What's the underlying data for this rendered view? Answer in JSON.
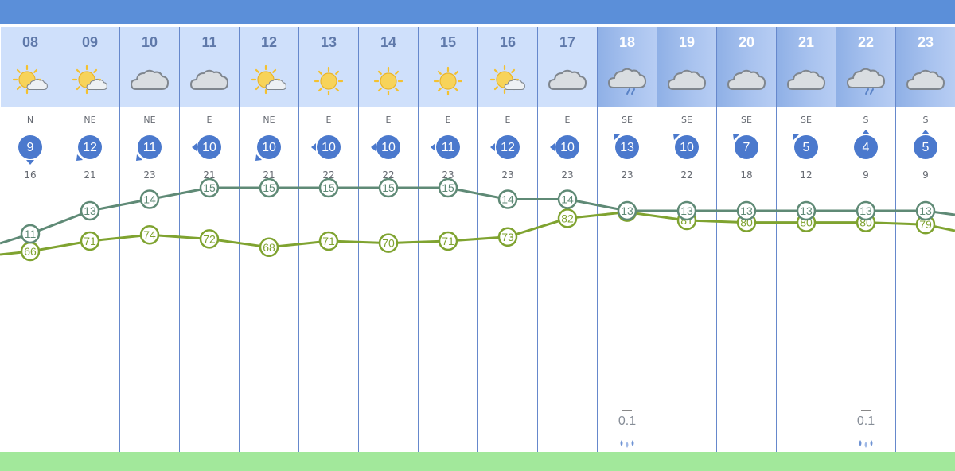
{
  "colors": {
    "top_bar": "#5b8fd9",
    "temp_line": "#5f8a76",
    "humidity_line": "#7fa330",
    "badge": "#4b79cd",
    "green_strip": "#a2e89b"
  },
  "hours": [
    {
      "hour": "08",
      "icon": "sun-cloud-icon",
      "dir": "N",
      "speed": "9",
      "gust": "16",
      "arrow": "down",
      "temp": "11",
      "hum": "66"
    },
    {
      "hour": "09",
      "icon": "sun-cloud-icon",
      "dir": "NE",
      "speed": "12",
      "gust": "21",
      "arrow": "down-left",
      "temp": "13",
      "hum": "71"
    },
    {
      "hour": "10",
      "icon": "cloud-icon",
      "dir": "NE",
      "speed": "11",
      "gust": "23",
      "arrow": "down-left",
      "temp": "14",
      "hum": "74"
    },
    {
      "hour": "11",
      "icon": "cloud-icon",
      "dir": "E",
      "speed": "10",
      "gust": "21",
      "arrow": "left",
      "temp": "15",
      "hum": "72"
    },
    {
      "hour": "12",
      "icon": "sun-cloud-icon",
      "dir": "NE",
      "speed": "10",
      "gust": "21",
      "arrow": "down-left",
      "temp": "15",
      "hum": "68"
    },
    {
      "hour": "13",
      "icon": "sun-icon",
      "dir": "E",
      "speed": "10",
      "gust": "22",
      "arrow": "left",
      "temp": "15",
      "hum": "71"
    },
    {
      "hour": "14",
      "icon": "sun-icon",
      "dir": "E",
      "speed": "10",
      "gust": "22",
      "arrow": "left",
      "temp": "15",
      "hum": "70"
    },
    {
      "hour": "15",
      "icon": "sun-icon",
      "dir": "E",
      "speed": "11",
      "gust": "23",
      "arrow": "left",
      "temp": "15",
      "hum": "71"
    },
    {
      "hour": "16",
      "icon": "sun-cloud-icon",
      "dir": "E",
      "speed": "12",
      "gust": "23",
      "arrow": "left",
      "temp": "14",
      "hum": "73"
    },
    {
      "hour": "17",
      "icon": "cloud-icon",
      "dir": "E",
      "speed": "10",
      "gust": "23",
      "arrow": "left",
      "temp": "14",
      "hum": "82"
    },
    {
      "hour": "18",
      "icon": "rain-cloud-icon",
      "dir": "SE",
      "speed": "13",
      "gust": "23",
      "arrow": "up-left",
      "temp": "13",
      "hum": "85",
      "night": true,
      "rain": "0.1"
    },
    {
      "hour": "19",
      "icon": "cloud-icon",
      "dir": "SE",
      "speed": "10",
      "gust": "22",
      "arrow": "up-left",
      "temp": "13",
      "hum": "81",
      "night": true
    },
    {
      "hour": "20",
      "icon": "cloud-icon",
      "dir": "SE",
      "speed": "7",
      "gust": "18",
      "arrow": "up-left",
      "temp": "13",
      "hum": "80",
      "night": true
    },
    {
      "hour": "21",
      "icon": "cloud-icon",
      "dir": "SE",
      "speed": "5",
      "gust": "12",
      "arrow": "up-left",
      "temp": "13",
      "hum": "80",
      "night": true
    },
    {
      "hour": "22",
      "icon": "rain-cloud-icon",
      "dir": "S",
      "speed": "4",
      "gust": "9",
      "arrow": "up",
      "temp": "13",
      "hum": "80",
      "night": true,
      "rain": "0.1"
    },
    {
      "hour": "23",
      "icon": "cloud-icon",
      "dir": "S",
      "speed": "5",
      "gust": "9",
      "arrow": "up",
      "temp": "13",
      "hum": "79",
      "night": true
    }
  ]
}
